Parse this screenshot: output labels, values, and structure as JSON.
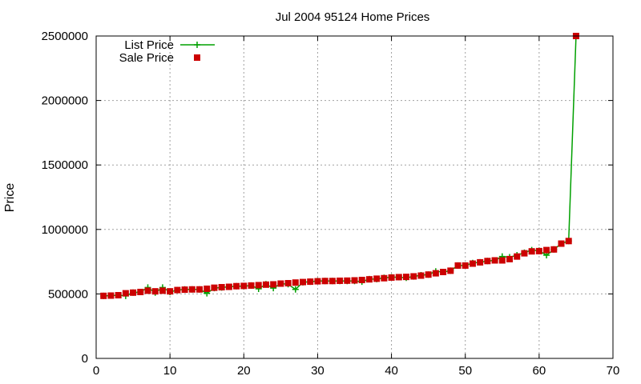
{
  "chart_data": {
    "type": "line",
    "title": "Jul 2004 95124 Home Prices",
    "xlabel": "",
    "ylabel": "Price",
    "xlim": [
      0,
      70
    ],
    "ylim": [
      0,
      2500000
    ],
    "x_ticks": [
      "0",
      "10",
      "20",
      "30",
      "40",
      "50",
      "60",
      "70"
    ],
    "y_ticks": [
      "0",
      "500000",
      "1000000",
      "1500000",
      "2000000",
      "2500000"
    ],
    "grid": true,
    "legend_position": "top-left",
    "series": [
      {
        "name": "List Price",
        "style": "line with plus markers",
        "color": "#00a000",
        "x": [
          1,
          2,
          3,
          4,
          5,
          6,
          7,
          8,
          9,
          10,
          11,
          12,
          13,
          14,
          15,
          16,
          17,
          18,
          19,
          20,
          21,
          22,
          23,
          24,
          25,
          26,
          27,
          28,
          29,
          30,
          31,
          32,
          33,
          34,
          35,
          36,
          37,
          38,
          39,
          40,
          41,
          42,
          43,
          44,
          45,
          46,
          47,
          48,
          49,
          50,
          51,
          52,
          53,
          54,
          55,
          56,
          57,
          58,
          59,
          60,
          61,
          62,
          63,
          64,
          65
        ],
        "values": [
          485000,
          487000,
          490000,
          485000,
          510000,
          515000,
          550000,
          510000,
          550000,
          515000,
          530000,
          535000,
          535000,
          535000,
          505000,
          545000,
          550000,
          555000,
          560000,
          560000,
          565000,
          540000,
          575000,
          545000,
          580000,
          575000,
          535000,
          590000,
          595000,
          600000,
          600000,
          600000,
          600000,
          600000,
          600000,
          595000,
          615000,
          615000,
          625000,
          630000,
          630000,
          625000,
          635000,
          645000,
          650000,
          675000,
          670000,
          680000,
          720000,
          720000,
          740000,
          745000,
          755000,
          760000,
          790000,
          785000,
          800000,
          820000,
          840000,
          835000,
          800000,
          845000,
          890000,
          910000,
          2500000
        ]
      },
      {
        "name": "Sale Price",
        "style": "square markers",
        "color": "#cc0000",
        "x": [
          1,
          2,
          3,
          4,
          5,
          6,
          7,
          8,
          9,
          10,
          11,
          12,
          13,
          14,
          15,
          16,
          17,
          18,
          19,
          20,
          21,
          22,
          23,
          24,
          25,
          26,
          27,
          28,
          29,
          30,
          31,
          32,
          33,
          34,
          35,
          36,
          37,
          38,
          39,
          40,
          41,
          42,
          43,
          44,
          45,
          46,
          47,
          48,
          49,
          50,
          51,
          52,
          53,
          54,
          55,
          56,
          57,
          58,
          59,
          60,
          61,
          62,
          63,
          64,
          65
        ],
        "values": [
          485000,
          487000,
          490000,
          505000,
          510000,
          515000,
          525000,
          520000,
          525000,
          520000,
          530000,
          533000,
          535000,
          535000,
          540000,
          548000,
          552000,
          555000,
          560000,
          562000,
          565000,
          568000,
          572000,
          574000,
          580000,
          583000,
          588000,
          592000,
          595000,
          598000,
          600000,
          600000,
          602000,
          603000,
          605000,
          608000,
          613000,
          618000,
          622000,
          627000,
          630000,
          632000,
          636000,
          642000,
          650000,
          660000,
          670000,
          680000,
          720000,
          720000,
          735000,
          745000,
          755000,
          760000,
          760000,
          770000,
          790000,
          815000,
          830000,
          832000,
          840000,
          845000,
          890000,
          910000,
          2500000
        ]
      }
    ]
  }
}
